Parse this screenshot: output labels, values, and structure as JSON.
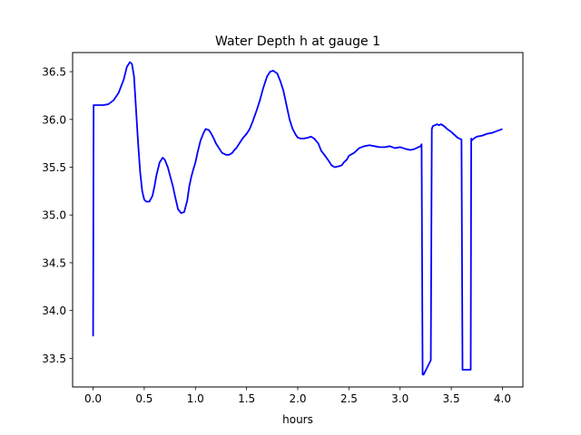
{
  "chart_data": {
    "type": "line",
    "title": "Water Depth h at gauge 1",
    "xlabel": "hours",
    "ylabel": "",
    "xlim": [
      -0.2,
      4.2
    ],
    "ylim": [
      33.2,
      36.7
    ],
    "xticks": [
      0.0,
      0.5,
      1.0,
      1.5,
      2.0,
      2.5,
      3.0,
      3.5,
      4.0
    ],
    "xtick_labels": [
      "0.0",
      "0.5",
      "1.0",
      "1.5",
      "2.0",
      "2.5",
      "3.0",
      "3.5",
      "4.0"
    ],
    "yticks": [
      33.5,
      34.0,
      34.5,
      35.0,
      35.5,
      36.0,
      36.5
    ],
    "ytick_labels": [
      "33.5",
      "34.0",
      "34.5",
      "35.0",
      "35.5",
      "36.0",
      "36.5"
    ],
    "grid": false,
    "series": [
      {
        "color": "#0000ff",
        "x": [
          0.0,
          0.005,
          0.05,
          0.1,
          0.15,
          0.2,
          0.25,
          0.3,
          0.33,
          0.36,
          0.38,
          0.4,
          0.42,
          0.44,
          0.46,
          0.48,
          0.5,
          0.52,
          0.55,
          0.58,
          0.6,
          0.62,
          0.65,
          0.68,
          0.7,
          0.73,
          0.75,
          0.78,
          0.8,
          0.83,
          0.86,
          0.89,
          0.92,
          0.94,
          0.96,
          0.98,
          1.0,
          1.02,
          1.05,
          1.08,
          1.1,
          1.13,
          1.15,
          1.18,
          1.2,
          1.23,
          1.26,
          1.3,
          1.33,
          1.36,
          1.38,
          1.4,
          1.43,
          1.46,
          1.5,
          1.53,
          1.56,
          1.6,
          1.63,
          1.66,
          1.7,
          1.73,
          1.76,
          1.8,
          1.83,
          1.86,
          1.88,
          1.9,
          1.92,
          1.95,
          1.98,
          2.0,
          2.03,
          2.06,
          2.1,
          2.13,
          2.16,
          2.2,
          2.23,
          2.26,
          2.3,
          2.33,
          2.36,
          2.4,
          2.43,
          2.45,
          2.48,
          2.5,
          2.55,
          2.6,
          2.65,
          2.7,
          2.75,
          2.8,
          2.85,
          2.9,
          2.95,
          3.0,
          3.03,
          3.06,
          3.1,
          3.14,
          3.18,
          3.2,
          3.21,
          3.22,
          3.23,
          3.3,
          3.31,
          3.32,
          3.34,
          3.36,
          3.38,
          3.4,
          3.43,
          3.46,
          3.5,
          3.53,
          3.56,
          3.58,
          3.6,
          3.61,
          3.615,
          3.69,
          3.695,
          3.7,
          3.72,
          3.75,
          3.8,
          3.85,
          3.9,
          3.95,
          4.0
        ],
        "y": [
          33.73,
          36.15,
          36.15,
          36.15,
          36.16,
          36.2,
          36.28,
          36.42,
          36.55,
          36.6,
          36.58,
          36.45,
          36.1,
          35.75,
          35.45,
          35.25,
          35.16,
          35.14,
          35.14,
          35.2,
          35.3,
          35.42,
          35.55,
          35.6,
          35.58,
          35.5,
          35.42,
          35.3,
          35.2,
          35.06,
          35.02,
          35.03,
          35.15,
          35.3,
          35.4,
          35.48,
          35.55,
          35.65,
          35.78,
          35.86,
          35.9,
          35.89,
          35.86,
          35.8,
          35.75,
          35.7,
          35.65,
          35.63,
          35.63,
          35.65,
          35.68,
          35.7,
          35.75,
          35.8,
          35.85,
          35.9,
          35.98,
          36.1,
          36.2,
          36.32,
          36.45,
          36.5,
          36.51,
          36.48,
          36.4,
          36.3,
          36.2,
          36.1,
          36.0,
          35.9,
          35.84,
          35.81,
          35.8,
          35.8,
          35.81,
          35.82,
          35.8,
          35.75,
          35.67,
          35.63,
          35.57,
          35.52,
          35.5,
          35.51,
          35.52,
          35.55,
          35.58,
          35.62,
          35.65,
          35.7,
          35.72,
          35.73,
          35.72,
          35.71,
          35.71,
          35.72,
          35.7,
          35.71,
          35.7,
          35.69,
          35.68,
          35.69,
          35.71,
          35.72,
          35.74,
          33.33,
          33.33,
          33.48,
          35.9,
          35.93,
          35.94,
          35.95,
          35.94,
          35.95,
          35.93,
          35.9,
          35.87,
          35.84,
          35.81,
          35.8,
          35.79,
          33.38,
          33.38,
          33.38,
          35.8,
          35.78,
          35.8,
          35.82,
          35.83,
          35.85,
          35.86,
          35.88,
          35.9
        ]
      }
    ]
  }
}
